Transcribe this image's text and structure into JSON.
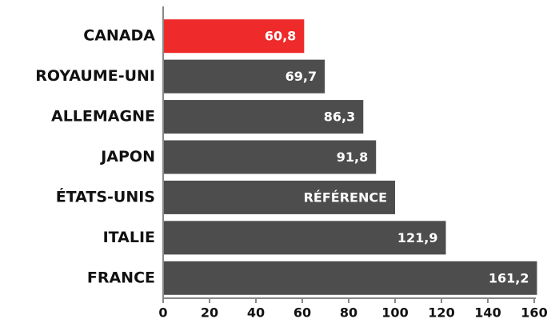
{
  "chart_data": {
    "type": "hbar",
    "categories": [
      "CANADA",
      "ROYAUME-UNI",
      "ALLEMAGNE",
      "JAPON",
      "ÉTATS-UNIS",
      "ITALIE",
      "FRANCE"
    ],
    "values": [
      60.8,
      69.7,
      86.3,
      91.8,
      100,
      121.9,
      161.2
    ],
    "value_labels": [
      "60,8",
      "69,7",
      "86,3",
      "91,8",
      "RÉFÉRENCE",
      "121,9",
      "161,2"
    ],
    "colors": [
      "#ee2a2b",
      "#4d4d4d",
      "#4d4d4d",
      "#4d4d4d",
      "#4d4d4d",
      "#4d4d4d",
      "#4d4d4d"
    ],
    "xlim": [
      0,
      160
    ],
    "xticks": [
      0,
      20,
      40,
      60,
      80,
      100,
      120,
      140,
      160
    ]
  }
}
